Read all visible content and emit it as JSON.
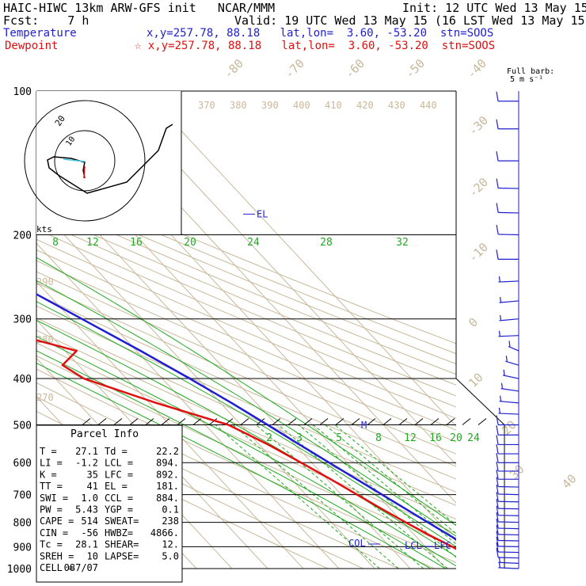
{
  "header": {
    "line1_left": "HAIC-HIWC 13km ARW-GFS init   NCAR/MMM",
    "line1_right": "Init: 12 UTC Wed 13 May 15",
    "line2_left": "Fcst:    7 h",
    "line2_right": "Valid: 19 UTC Wed 13 May 15 (16 LST Wed 13 May 15)",
    "temp_label": "Temperature",
    "temp_info": "x,y=257.78, 88.18   lat,lon=  3.60, -53.20  stn=SOOS",
    "dew_label": "Dewpoint",
    "dew_info": "☆ x,y=257.78, 88.18   lat,lon=  3.60, -53.20  stn=SOOS",
    "barb_note_1": "Full barb:",
    "barb_note_2": "5 m s⁻¹"
  },
  "colors": {
    "temperature": "#1f1fd0",
    "dewpoint": "#e01010",
    "isotherm": "#c8b89a",
    "dry_adiabat": "#c8b89a",
    "moist_adiabat": "#1faa1f",
    "mixing_ratio": "#1faa1f",
    "wind": "#1f1fd0"
  },
  "chart_data": {
    "type": "line",
    "y_axis": "pressure (hPa), log scale",
    "ylim": [
      1000,
      100
    ],
    "pressure_ticks": [
      100,
      200,
      300,
      400,
      500,
      600,
      700,
      800,
      900,
      1000
    ],
    "isotherm_labels": [
      "-80",
      "-70",
      "-60",
      "-50",
      "-40",
      "-30",
      "-20",
      "-10",
      "0",
      "10",
      "20",
      "30",
      "40"
    ],
    "theta_labels_top": [
      "370",
      "380",
      "390",
      "400",
      "410",
      "420",
      "430",
      "440"
    ],
    "theta_labels_left": [
      "290",
      "280",
      "270"
    ],
    "moist_labels": [
      "8",
      "12",
      "16",
      "20",
      "24",
      "28",
      "32"
    ],
    "mixing_ratio_labels": [
      "2",
      "3",
      "5",
      "8",
      "12",
      "16",
      "20",
      "24"
    ],
    "series": [
      {
        "name": "Temperature",
        "points": [
          [
            1000,
            27.1
          ],
          [
            970,
            26.0
          ],
          [
            950,
            24.8
          ],
          [
            925,
            23.4
          ],
          [
            900,
            22.0
          ],
          [
            850,
            19.6
          ],
          [
            800,
            17.0
          ],
          [
            750,
            14.3
          ],
          [
            700,
            11.4
          ],
          [
            650,
            8.3
          ],
          [
            600,
            4.9
          ],
          [
            550,
            1.3
          ],
          [
            500,
            -2.5
          ],
          [
            450,
            -6.9
          ],
          [
            400,
            -12.3
          ],
          [
            350,
            -18.8
          ],
          [
            300,
            -27.0
          ],
          [
            250,
            -36.6
          ],
          [
            200,
            -48.6
          ],
          [
            175,
            -55.8
          ],
          [
            150,
            -63.0
          ],
          [
            125,
            -70.5
          ],
          [
            110,
            -75.6
          ],
          [
            100,
            -79.5
          ]
        ]
      },
      {
        "name": "Dewpoint",
        "points": [
          [
            1000,
            22.2
          ],
          [
            970,
            21.5
          ],
          [
            950,
            20.5
          ],
          [
            925,
            18.8
          ],
          [
            900,
            17.5
          ],
          [
            850,
            14.0
          ],
          [
            800,
            10.8
          ],
          [
            750,
            7.6
          ],
          [
            700,
            4.4
          ],
          [
            650,
            1.0
          ],
          [
            600,
            -3.0
          ],
          [
            550,
            -7.5
          ],
          [
            500,
            -13.5
          ],
          [
            450,
            -28.0
          ],
          [
            400,
            -42.0
          ],
          [
            375,
            -44.5
          ],
          [
            350,
            -36.8
          ],
          [
            325,
            -49.0
          ],
          [
            300,
            -61.0
          ],
          [
            275,
            -71.5
          ],
          [
            250,
            -69.5
          ],
          [
            225,
            -70.0
          ],
          [
            210,
            -71.0
          ],
          [
            200,
            -75.5
          ],
          [
            175,
            -85.0
          ],
          [
            150,
            -93.0
          ],
          [
            125,
            -98.5
          ],
          [
            110,
            -101.5
          ],
          [
            100,
            -103.0
          ]
        ]
      }
    ],
    "annotations": {
      "el_label": "EL",
      "col_label": "COL",
      "lcl_label": "LCL",
      "lfc_label": "LFC",
      "m_label": "M",
      "el_pressure": 181,
      "lcl_pressure": 894,
      "col_pressure": 884
    },
    "hodograph": {
      "ring_label": "20",
      "inner_label": "10",
      "kts_label": "kts"
    },
    "winds": [
      {
        "p": 1000,
        "spd": 5,
        "dir": 100
      },
      {
        "p": 975,
        "spd": 5,
        "dir": 100
      },
      {
        "p": 950,
        "spd": 10,
        "dir": 95
      },
      {
        "p": 925,
        "spd": 10,
        "dir": 95
      },
      {
        "p": 900,
        "spd": 10,
        "dir": 95
      },
      {
        "p": 875,
        "spd": 10,
        "dir": 95
      },
      {
        "p": 850,
        "spd": 10,
        "dir": 95
      },
      {
        "p": 825,
        "spd": 10,
        "dir": 95
      },
      {
        "p": 800,
        "spd": 10,
        "dir": 95
      },
      {
        "p": 775,
        "spd": 10,
        "dir": 95
      },
      {
        "p": 750,
        "spd": 10,
        "dir": 95
      },
      {
        "p": 725,
        "spd": 10,
        "dir": 95
      },
      {
        "p": 700,
        "spd": 10,
        "dir": 95
      },
      {
        "p": 675,
        "spd": 10,
        "dir": 95
      },
      {
        "p": 650,
        "spd": 10,
        "dir": 90
      },
      {
        "p": 625,
        "spd": 10,
        "dir": 90
      },
      {
        "p": 600,
        "spd": 10,
        "dir": 90
      },
      {
        "p": 575,
        "spd": 10,
        "dir": 90
      },
      {
        "p": 550,
        "spd": 10,
        "dir": 90
      },
      {
        "p": 525,
        "spd": 10,
        "dir": 90
      },
      {
        "p": 500,
        "spd": 10,
        "dir": 90
      },
      {
        "p": 475,
        "spd": 5,
        "dir": 100
      },
      {
        "p": 450,
        "spd": 5,
        "dir": 110
      },
      {
        "p": 425,
        "spd": 5,
        "dir": 120
      },
      {
        "p": 400,
        "spd": 5,
        "dir": 130
      },
      {
        "p": 375,
        "spd": 5,
        "dir": 140
      },
      {
        "p": 350,
        "spd": 5,
        "dir": 150
      },
      {
        "p": 325,
        "spd": 5,
        "dir": 80
      },
      {
        "p": 300,
        "spd": 5,
        "dir": 70
      },
      {
        "p": 275,
        "spd": 5,
        "dir": 70
      },
      {
        "p": 250,
        "spd": 5,
        "dir": 80
      },
      {
        "p": 225,
        "spd": 10,
        "dir": 90
      },
      {
        "p": 200,
        "spd": 10,
        "dir": 95
      },
      {
        "p": 180,
        "spd": 10,
        "dir": 95
      },
      {
        "p": 160,
        "spd": 10,
        "dir": 95
      },
      {
        "p": 140,
        "spd": 10,
        "dir": 90
      },
      {
        "p": 120,
        "spd": 10,
        "dir": 90
      },
      {
        "p": 105,
        "spd": 10,
        "dir": 90
      }
    ]
  },
  "parcel_info": {
    "title": "Parcel Info",
    "rows": [
      [
        "T   =",
        "27.1",
        "Td  =",
        "22.2"
      ],
      [
        "LI  =",
        "-1.2",
        "LCL =",
        "894."
      ],
      [
        "K   =",
        "35",
        "LFC =",
        "892."
      ],
      [
        "TT  =",
        "41",
        "EL  =",
        "181."
      ],
      [
        "SWI =",
        "1.0",
        "CCL =",
        "884."
      ],
      [
        "PW  =",
        "5.43",
        "YGP =",
        "0.1"
      ],
      [
        "CAPE =",
        "514",
        "SWEAT=",
        "238"
      ],
      [
        "CIN =",
        "-56",
        "HWBZ=",
        "4866."
      ],
      [
        "Tc  =",
        "28.1",
        "SHEAR=",
        "12."
      ],
      [
        "SREH =",
        "10",
        "LAPSE=",
        "5.0"
      ],
      [
        "CELL =",
        "087/07",
        "",
        ""
      ]
    ]
  }
}
